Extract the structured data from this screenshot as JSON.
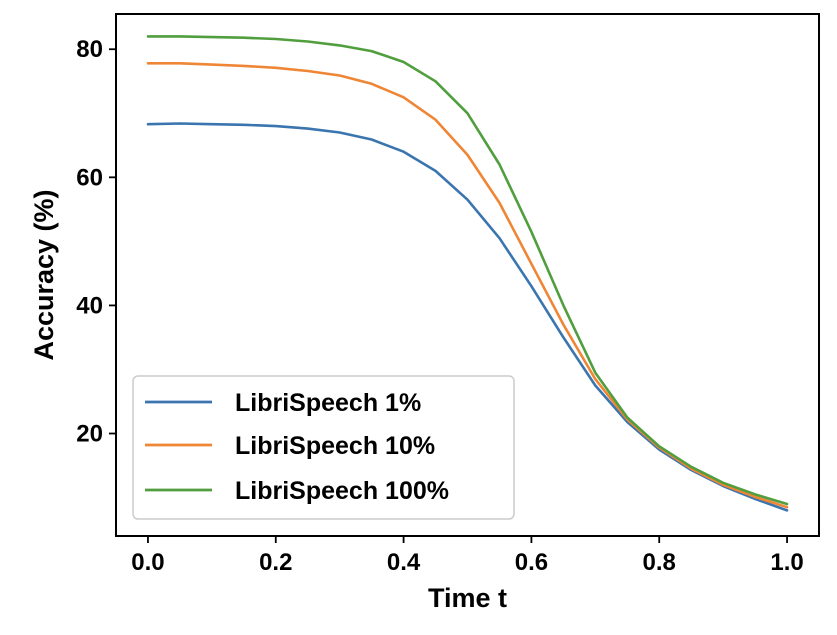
{
  "chart_data": {
    "type": "line",
    "xlabel": "Time t",
    "ylabel": "Accuracy (%)",
    "xlim": [
      -0.05,
      1.05
    ],
    "ylim": [
      4,
      85.5
    ],
    "xticks": [
      0.0,
      0.2,
      0.4,
      0.6,
      0.8,
      1.0
    ],
    "xtick_labels": [
      "0.0",
      "0.2",
      "0.4",
      "0.6",
      "0.8",
      "1.0"
    ],
    "yticks": [
      20,
      40,
      60,
      80
    ],
    "ytick_labels": [
      "20",
      "40",
      "60",
      "80"
    ],
    "grid": false,
    "legend": "lower-left",
    "x": [
      0.0,
      0.05,
      0.1,
      0.15,
      0.2,
      0.25,
      0.3,
      0.35,
      0.4,
      0.45,
      0.5,
      0.55,
      0.6,
      0.65,
      0.7,
      0.75,
      0.8,
      0.85,
      0.9,
      0.95,
      1.0
    ],
    "series": [
      {
        "name": "LibriSpeech 1%",
        "color": "#3b75af",
        "values": [
          68.3,
          68.4,
          68.3,
          68.2,
          68.0,
          67.6,
          67.0,
          65.9,
          64.0,
          61.0,
          56.5,
          50.5,
          43.0,
          35.0,
          27.5,
          21.8,
          17.5,
          14.3,
          11.8,
          9.8,
          8.0
        ]
      },
      {
        "name": "LibriSpeech 10%",
        "color": "#ef8636",
        "values": [
          77.8,
          77.8,
          77.6,
          77.4,
          77.1,
          76.6,
          75.9,
          74.6,
          72.5,
          69.0,
          63.5,
          56.0,
          46.5,
          37.0,
          28.5,
          22.2,
          17.8,
          14.5,
          12.0,
          10.1,
          8.5
        ]
      },
      {
        "name": "LibriSpeech 100%",
        "color": "#519e3e",
        "values": [
          82.0,
          82.0,
          81.9,
          81.8,
          81.6,
          81.2,
          80.6,
          79.7,
          78.0,
          75.0,
          70.0,
          62.0,
          51.5,
          40.0,
          29.5,
          22.5,
          18.0,
          14.8,
          12.3,
          10.5,
          9.0
        ]
      }
    ]
  }
}
